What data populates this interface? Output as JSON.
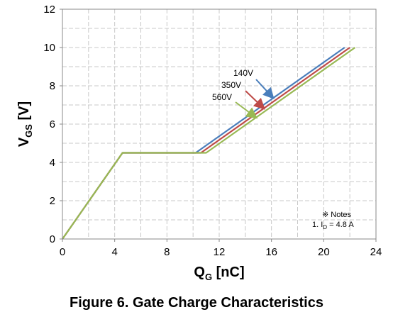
{
  "chart_data": {
    "type": "line",
    "xlabel": {
      "main": "Q",
      "sub": "G",
      "unit": " [nC]"
    },
    "ylabel": {
      "main": "V",
      "sub": "GS",
      "unit": " [V]"
    },
    "xlim": [
      0,
      24
    ],
    "ylim": [
      0,
      12
    ],
    "xticks": [
      "0",
      "4",
      "8",
      "12",
      "16",
      "20",
      "24"
    ],
    "yticks": [
      "0",
      "2",
      "4",
      "6",
      "8",
      "10",
      "12"
    ],
    "grid": true,
    "series": [
      {
        "name": "140V",
        "color": "#4a7ebb",
        "x": [
          0,
          4.6,
          10.2,
          21.6
        ],
        "y": [
          0,
          4.5,
          4.5,
          10
        ]
      },
      {
        "name": "350V",
        "color": "#be4b48",
        "x": [
          0,
          4.6,
          10.6,
          22.0
        ],
        "y": [
          0,
          4.5,
          4.5,
          10
        ]
      },
      {
        "name": "560V",
        "color": "#98b954",
        "x": [
          0,
          4.6,
          11.0,
          22.4
        ],
        "y": [
          0,
          4.5,
          4.5,
          10
        ]
      }
    ],
    "annotations": [
      {
        "text": "140V",
        "arrow_color": "#4a7ebb"
      },
      {
        "text": "350V",
        "arrow_color": "#be4b48"
      },
      {
        "text": "560V",
        "arrow_color": "#98b954"
      }
    ]
  },
  "notes": {
    "title": "※ Notes",
    "line1_prefix": "1. I",
    "line1_sub": "D",
    "line1_suffix": " = 4.8 A"
  },
  "caption": "Figure 6. Gate Charge Characteristics"
}
